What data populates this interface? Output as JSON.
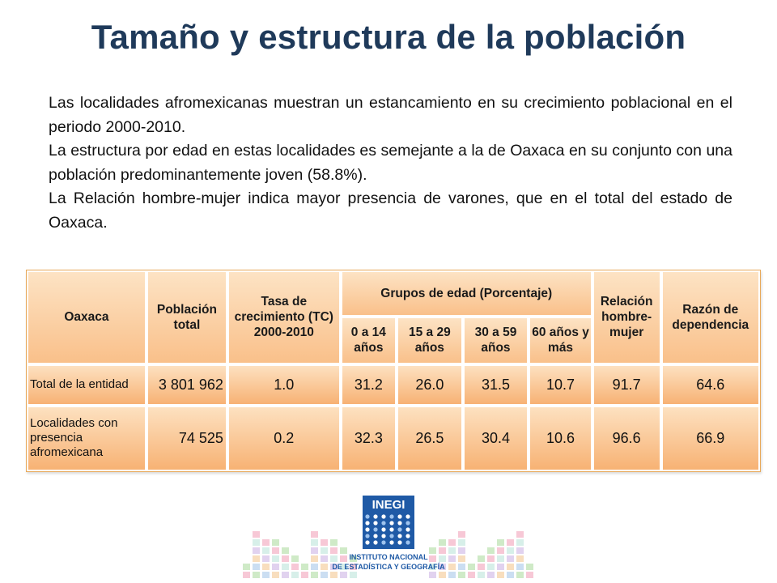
{
  "title": "Tamaño y estructura de la población",
  "paragraphs": [
    "Las localidades afromexicanas muestran un estancamiento en su crecimiento poblacional en el periodo 2000-2010.",
    "La estructura por edad en estas localidades es semejante a la de Oaxaca en su conjunto con una población predominantemente joven (58.8%).",
    "La Relación hombre-mujer indica mayor presencia de varones, que en el total del estado de Oaxaca."
  ],
  "table": {
    "headers": {
      "oaxaca": "Oaxaca",
      "poblacion": "Población total",
      "tasa": "Tasa de crecimiento (TC) 2000-2010",
      "grupos": "Grupos de edad (Porcentaje)",
      "g1": "0 a 14 años",
      "g2": "15 a 29 años",
      "g3": "30 a 59 años",
      "g4": "60 años y más",
      "relacion": "Relación hombre-mujer",
      "razon": "Razón de dependencia"
    },
    "rows": [
      {
        "label": "Total de la entidad",
        "poblacion": "3 801 962",
        "tasa": "1.0",
        "g1": "31.2",
        "g2": "26.0",
        "g3": "31.5",
        "g4": "10.7",
        "relacion": "91.7",
        "razon": "64.6"
      },
      {
        "label": "Localidades con presencia afromexicana",
        "poblacion": "74 525",
        "tasa": "0.2",
        "g1": "32.3",
        "g2": "26.5",
        "g3": "30.4",
        "g4": "10.6",
        "relacion": "96.6",
        "razon": "66.9"
      }
    ]
  },
  "logo": {
    "text": "INEGI",
    "line1": "INSTITUTO NACIONAL",
    "line2": "DE ESTADÍSTICA Y GEOGRAFÍA"
  },
  "colors": {
    "title": "#1f3a5a",
    "table_fill": "#f9c08a",
    "logo_blue": "#1f5aa6"
  }
}
